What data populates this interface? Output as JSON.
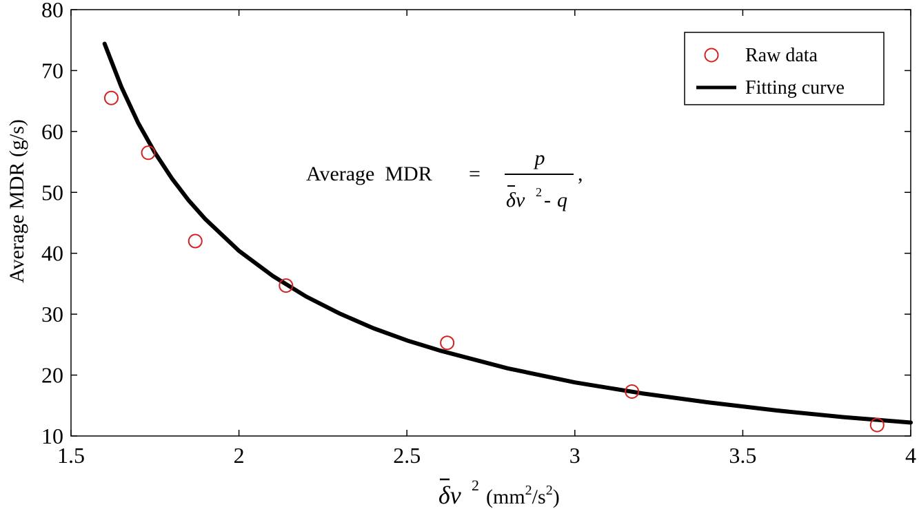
{
  "chart_data": {
    "type": "scatter",
    "xlabel": {
      "symbol": "δ",
      "v": "v",
      "sup": "2",
      "units_open": "(mm",
      "units_sup1": "2",
      "units_mid": "/s",
      "units_sup2": "2",
      "units_close": ")"
    },
    "ylabel": "Average MDR (g/s)",
    "xlim": [
      1.5,
      4
    ],
    "ylim": [
      10,
      80
    ],
    "xticks": [
      1.5,
      2,
      2.5,
      3,
      3.5,
      4
    ],
    "xtick_labels": [
      "1.5",
      "2",
      "2.5",
      "3",
      "3.5",
      "4"
    ],
    "yticks": [
      10,
      20,
      30,
      40,
      50,
      60,
      70,
      80
    ],
    "ytick_labels": [
      "10",
      "20",
      "30",
      "40",
      "50",
      "60",
      "70",
      "80"
    ],
    "grid": false,
    "legend_position": "top-right",
    "series": [
      {
        "name": "Raw data",
        "kind": "markers",
        "color": "#d42020",
        "x": [
          1.62,
          1.73,
          1.87,
          2.14,
          2.62,
          3.17,
          3.9
        ],
        "y": [
          65.5,
          56.5,
          42.0,
          34.7,
          25.3,
          17.3,
          11.8
        ]
      },
      {
        "name": "Fitting curve",
        "kind": "line",
        "color": "#000000",
        "x": [
          1.6,
          1.65,
          1.7,
          1.75,
          1.8,
          1.85,
          1.9,
          2.0,
          2.1,
          2.2,
          2.3,
          2.4,
          2.5,
          2.6,
          2.8,
          3.0,
          3.2,
          3.4,
          3.6,
          3.8,
          4.0
        ],
        "y": [
          74.4,
          67.3,
          61.4,
          56.5,
          52.3,
          48.7,
          45.6,
          40.4,
          36.3,
          32.9,
          30.1,
          27.7,
          25.7,
          24.0,
          21.1,
          18.8,
          17.0,
          15.5,
          14.2,
          13.1,
          12.2
        ]
      }
    ],
    "annotation": {
      "lhs": "Average  MDR",
      "equals": "=",
      "numerator": "p",
      "den_symbol": "δ",
      "den_v": "v",
      "den_sup": "2",
      "den_minus": "-",
      "den_q": "q",
      "trail": ","
    }
  }
}
